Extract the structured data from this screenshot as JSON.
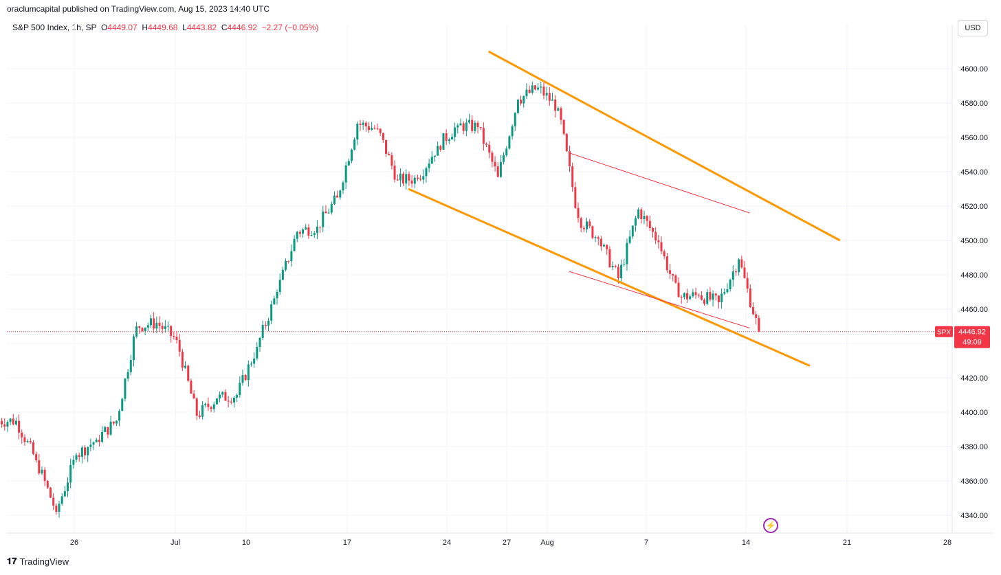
{
  "attribution": "oraclumcapital published on TradingView.com, Aug 15, 2023 14:40 UTC",
  "header": {
    "symbol": "S&P 500 Index, 1h, SP",
    "open_label": "O",
    "open": "4449.07",
    "high_label": "H",
    "high": "4449.68",
    "low_label": "L",
    "low": "4443.82",
    "close_label": "C",
    "close": "4446.92",
    "change": "−2.27 (−0.05%)"
  },
  "currency": "USD",
  "price_tag": {
    "symbol": "SPX",
    "price": "4446.92",
    "countdown": "49:09"
  },
  "footer": {
    "logo_glyph": "𝟏𝟕",
    "brand": "TradingView"
  },
  "colors": {
    "up": "#089981",
    "down": "#f23645",
    "channel": "#ff9800",
    "wedge": "#f23645",
    "grid": "#f0f3fa"
  },
  "chart_data": {
    "type": "candlestick",
    "y_axis": {
      "ticks": [
        4340,
        4360,
        4380,
        4400,
        4420,
        4440,
        4460,
        4480,
        4500,
        4520,
        4540,
        4560,
        4580,
        4600
      ],
      "tick_labels": [
        "4340.00",
        "4360.00",
        "4380.00",
        "4400.00",
        "4420.00",
        "4440.00",
        "4460.00",
        "4480.00",
        "4500.00",
        "4520.00",
        "4540.00",
        "4560.00",
        "4580.00",
        "4600.00"
      ],
      "range": [
        4331,
        4626
      ]
    },
    "x_axis": {
      "tick_labels": [
        "26",
        "Jul",
        "10",
        "17",
        "24",
        "27",
        "Aug",
        "7",
        "14",
        "21",
        "28"
      ]
    },
    "current_price": 4446.92,
    "close_path": [
      {
        "x": "Jun 22",
        "close": 4395
      },
      {
        "x": "Jun 23",
        "close": 4372
      },
      {
        "x": "Jun 26",
        "close": 4342
      },
      {
        "x": "Jun 27",
        "close": 4375
      },
      {
        "x": "Jun 28",
        "close": 4384
      },
      {
        "x": "Jun 29",
        "close": 4395
      },
      {
        "x": "Jun 30",
        "close": 4450
      },
      {
        "x": "Jul 3",
        "close": 4452
      },
      {
        "x": "Jul 5",
        "close": 4442
      },
      {
        "x": "Jul 6",
        "close": 4398
      },
      {
        "x": "Jul 7",
        "close": 4408
      },
      {
        "x": "Jul 10",
        "close": 4410
      },
      {
        "x": "Jul 11",
        "close": 4438
      },
      {
        "x": "Jul 12",
        "close": 4470
      },
      {
        "x": "Jul 13",
        "close": 4505
      },
      {
        "x": "Jul 14",
        "close": 4508
      },
      {
        "x": "Jul 17",
        "close": 4525
      },
      {
        "x": "Jul 18",
        "close": 4568
      },
      {
        "x": "Jul 19",
        "close": 4565
      },
      {
        "x": "Jul 20",
        "close": 4535
      },
      {
        "x": "Jul 21",
        "close": 4536
      },
      {
        "x": "Jul 24",
        "close": 4555
      },
      {
        "x": "Jul 25",
        "close": 4567
      },
      {
        "x": "Jul 26",
        "close": 4566
      },
      {
        "x": "Jul 27",
        "close": 4537
      },
      {
        "x": "Jul 28",
        "close": 4582
      },
      {
        "x": "Jul 31",
        "close": 4589
      },
      {
        "x": "Aug 1",
        "close": 4577
      },
      {
        "x": "Aug 2",
        "close": 4513
      },
      {
        "x": "Aug 3",
        "close": 4501
      },
      {
        "x": "Aug 4",
        "close": 4478
      },
      {
        "x": "Aug 7",
        "close": 4518
      },
      {
        "x": "Aug 8",
        "close": 4499
      },
      {
        "x": "Aug 9",
        "close": 4467
      },
      {
        "x": "Aug 10",
        "close": 4468
      },
      {
        "x": "Aug 11",
        "close": 4464
      },
      {
        "x": "Aug 14",
        "close": 4489
      },
      {
        "x": "Aug 15",
        "close": 4446.92
      }
    ],
    "trendlines": [
      {
        "name": "channel-upper",
        "from": {
          "x": "Jul 27",
          "y": 4610
        },
        "to": {
          "x": "Aug 20",
          "y": 4500
        },
        "style": "orange-thick"
      },
      {
        "name": "channel-lower",
        "from": {
          "x": "Jul 21",
          "y": 4530
        },
        "to": {
          "x": "Aug 18",
          "y": 4427
        },
        "style": "orange-thick"
      },
      {
        "name": "wedge-upper",
        "from": {
          "x": "Aug 2",
          "y": 4551
        },
        "to": {
          "x": "Aug 15",
          "y": 4516
        },
        "style": "red-thin"
      },
      {
        "name": "wedge-lower",
        "from": {
          "x": "Aug 2",
          "y": 4482
        },
        "to": {
          "x": "Aug 15",
          "y": 4449
        },
        "style": "red-thin"
      }
    ]
  }
}
